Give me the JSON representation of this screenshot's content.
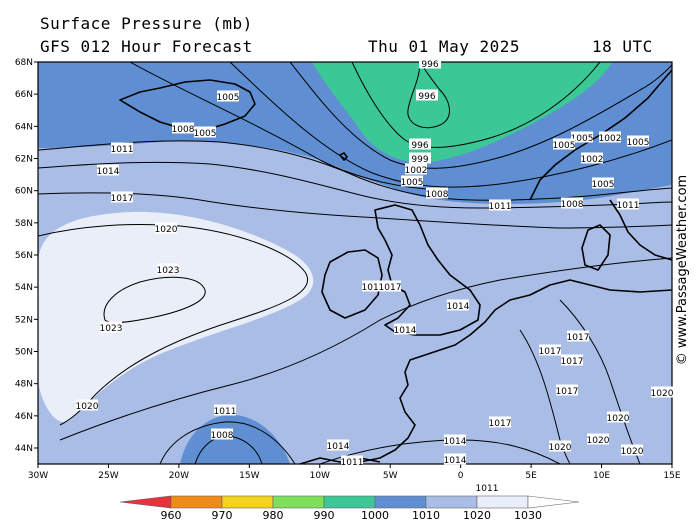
{
  "header": {
    "title": "Surface Pressure (mb)",
    "subtitle": "GFS 012 Hour Forecast",
    "date": "Thu 01 May 2025",
    "time": "18 UTC"
  },
  "credit": "© www.PassageWeather.com",
  "axes": {
    "lat_labels": [
      "68N",
      "66N",
      "64N",
      "62N",
      "60N",
      "58N",
      "56N",
      "54N",
      "52N",
      "50N",
      "48N",
      "46N",
      "44N"
    ],
    "lon_labels": [
      "30W",
      "25W",
      "20W",
      "15W",
      "10W",
      "5W",
      "0",
      "5E",
      "10E",
      "15E"
    ]
  },
  "legend": {
    "values": [
      "960",
      "970",
      "980",
      "990",
      "1000",
      "1010",
      "1020",
      "1030"
    ],
    "colors": [
      "#e8323c",
      "#f08a1a",
      "#f5d21e",
      "#7ee05a",
      "#3cc896",
      "#5f8fd2",
      "#a9bde6",
      "#e9eef8",
      "#ffffff"
    ]
  },
  "map_colors": {
    "band_1000_1010": "#5f8fd2",
    "band_1010_1020": "#a9bde6",
    "band_above_1020": "#e9eef8",
    "band_990_1000": "#3cc896"
  },
  "isobar_labels": [
    {
      "text": "1005",
      "id": "iso-1005-iceland"
    },
    {
      "text": "1008",
      "id": "iso-1008-a"
    },
    {
      "text": "1005",
      "id": "iso-1005-b"
    },
    {
      "text": "996",
      "id": "iso-996-top"
    },
    {
      "text": "996",
      "id": "iso-996-low"
    },
    {
      "text": "996",
      "id": "iso-996-c"
    },
    {
      "text": "999",
      "id": "iso-999"
    },
    {
      "text": "1002",
      "id": "iso-1002-n"
    },
    {
      "text": "1005",
      "id": "iso-1005-n"
    },
    {
      "text": "1008",
      "id": "iso-1008-n"
    },
    {
      "text": "1011",
      "id": "iso-1011-w"
    },
    {
      "text": "1014",
      "id": "iso-1014-w"
    },
    {
      "text": "1017",
      "id": "iso-1017-w"
    },
    {
      "text": "1020",
      "id": "iso-1020-w"
    },
    {
      "text": "1023",
      "id": "iso-1023-a"
    },
    {
      "text": "1023",
      "id": "iso-1023-b"
    },
    {
      "text": "1020",
      "id": "iso-1020-sw"
    },
    {
      "text": "1011",
      "id": "iso-1011-mid"
    },
    {
      "text": "1017",
      "id": "iso-1017-ire"
    },
    {
      "text": "1017",
      "id": "iso-1017-ire2"
    },
    {
      "text": "1014",
      "id": "iso-1014-uk"
    },
    {
      "text": "1014",
      "id": "iso-1014-fr"
    },
    {
      "text": "1011",
      "id": "iso-1011-s"
    },
    {
      "text": "1008",
      "id": "iso-1008-s"
    },
    {
      "text": "1014",
      "id": "iso-1014-s"
    },
    {
      "text": "1011",
      "id": "iso-1011-s2"
    },
    {
      "text": "1014",
      "id": "iso-1014-s3"
    },
    {
      "text": "1014",
      "id": "iso-1014-s4"
    },
    {
      "text": "1017",
      "id": "iso-1017-s"
    },
    {
      "text": "1017",
      "id": "iso-1017-e"
    },
    {
      "text": "1017",
      "id": "iso-1017-e2"
    },
    {
      "text": "1017",
      "id": "iso-1017-e3"
    },
    {
      "text": "1017",
      "id": "iso-1017-e4"
    },
    {
      "text": "1011",
      "id": "iso-1011-ne"
    },
    {
      "text": "1008",
      "id": "iso-1008-ne"
    },
    {
      "text": "1005",
      "id": "iso-1005-ne"
    },
    {
      "text": "1002",
      "id": "iso-1002-ne"
    },
    {
      "text": "1005",
      "id": "iso-1005-ne2"
    },
    {
      "text": "1002",
      "id": "iso-1002-ne2"
    },
    {
      "text": "1005",
      "id": "iso-1005-ne3"
    },
    {
      "text": "1005",
      "id": "iso-1005-ne4"
    },
    {
      "text": "1011",
      "id": "iso-1011-ne2"
    },
    {
      "text": "1020",
      "id": "iso-1020-se"
    },
    {
      "text": "1020",
      "id": "iso-1020-se2"
    },
    {
      "text": "1020",
      "id": "iso-1020-se3"
    },
    {
      "text": "1020",
      "id": "iso-1020-se4"
    },
    {
      "text": "1020",
      "id": "iso-1020-se5"
    }
  ]
}
